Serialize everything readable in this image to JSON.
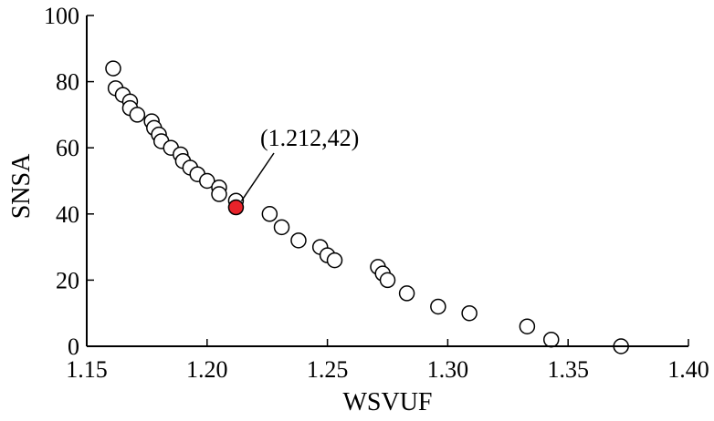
{
  "chart_data": {
    "type": "scatter",
    "title": "",
    "xlabel": "WSVUF",
    "ylabel": "SNSA",
    "xlim": [
      1.15,
      1.4
    ],
    "ylim": [
      0,
      100
    ],
    "x_ticks": [
      1.15,
      1.2,
      1.25,
      1.3,
      1.35,
      1.4
    ],
    "x_tick_labels": [
      "1.15",
      "1.20",
      "1.25",
      "1.30",
      "1.35",
      "1.40"
    ],
    "y_ticks": [
      0,
      20,
      40,
      60,
      80,
      100
    ],
    "y_tick_labels": [
      "0",
      "20",
      "40",
      "60",
      "80",
      "100"
    ],
    "grid": false,
    "marker_fill": "#ffffff",
    "marker_edge": "#000000",
    "highlight_color": "#e8232a",
    "series": [
      {
        "points": [
          [
            1.161,
            84
          ],
          [
            1.162,
            78
          ],
          [
            1.165,
            76
          ],
          [
            1.168,
            74
          ],
          [
            1.168,
            72
          ],
          [
            1.171,
            70
          ],
          [
            1.177,
            68
          ],
          [
            1.178,
            66
          ],
          [
            1.18,
            64
          ],
          [
            1.181,
            62
          ],
          [
            1.185,
            60
          ],
          [
            1.189,
            58
          ],
          [
            1.19,
            56
          ],
          [
            1.193,
            54
          ],
          [
            1.196,
            52
          ],
          [
            1.2,
            50
          ],
          [
            1.205,
            48
          ],
          [
            1.205,
            46
          ],
          [
            1.212,
            44
          ],
          [
            1.226,
            40
          ],
          [
            1.231,
            36
          ],
          [
            1.238,
            32
          ],
          [
            1.247,
            30
          ],
          [
            1.25,
            27.5
          ],
          [
            1.253,
            26
          ],
          [
            1.271,
            24
          ],
          [
            1.273,
            22
          ],
          [
            1.275,
            20
          ],
          [
            1.283,
            16
          ],
          [
            1.296,
            12
          ],
          [
            1.309,
            10
          ],
          [
            1.333,
            6
          ],
          [
            1.343,
            2
          ],
          [
            1.372,
            0
          ]
        ]
      }
    ],
    "highlight": {
      "x": 1.212,
      "y": 42
    },
    "annotation": {
      "text": "(1.212,42)"
    }
  }
}
